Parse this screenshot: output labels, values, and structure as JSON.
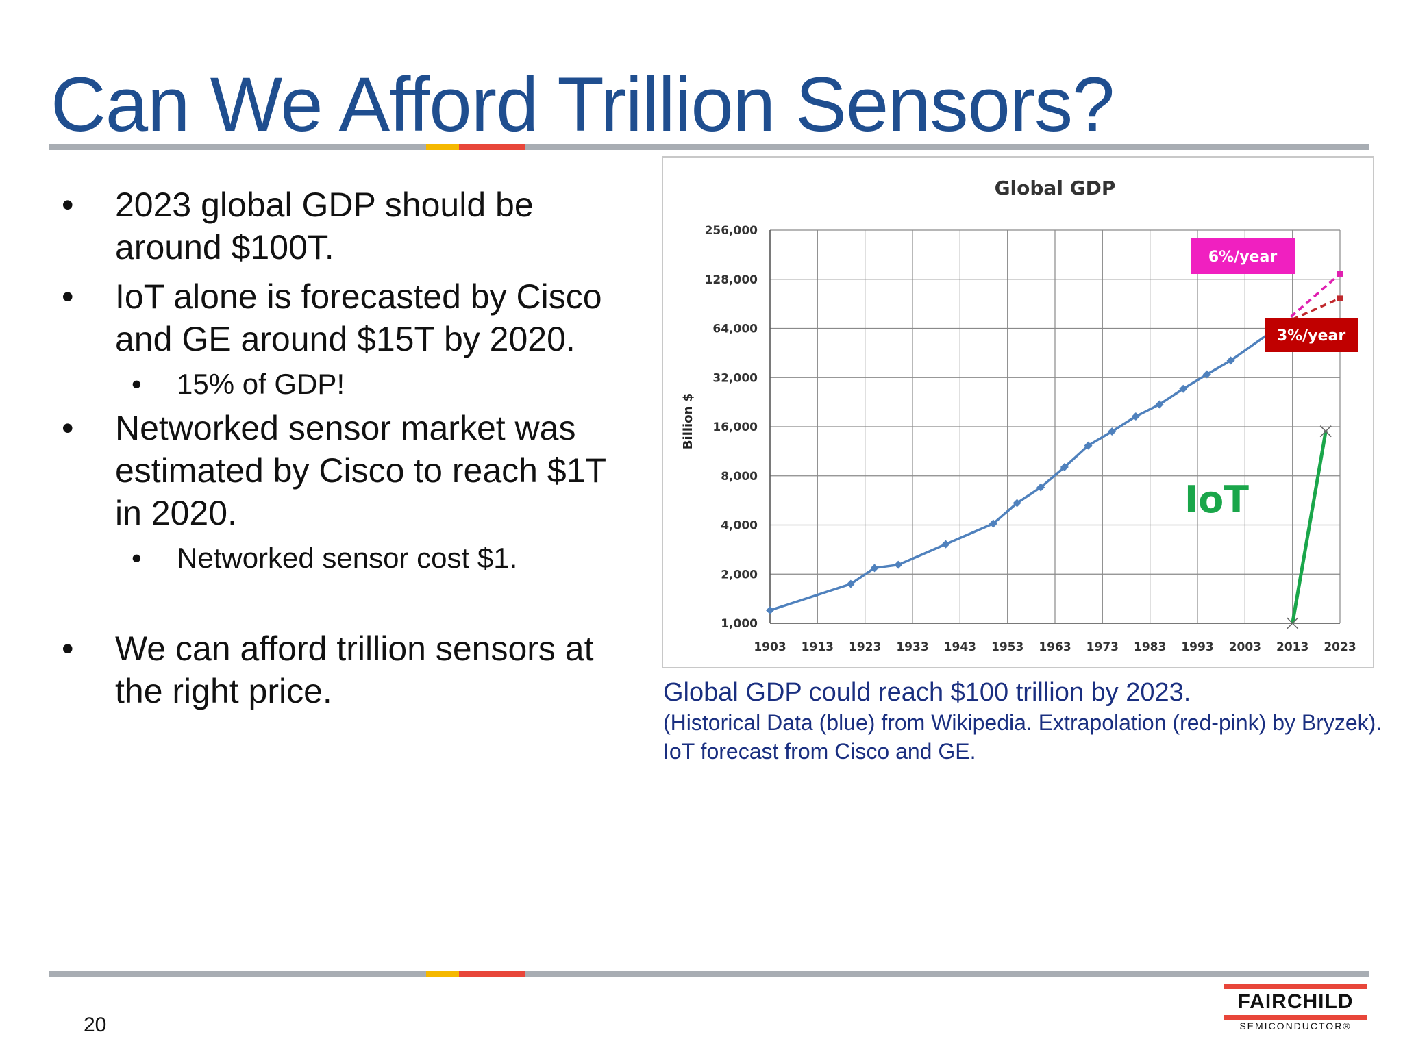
{
  "slide": {
    "title": "Can We Afford Trillion Sensors?",
    "page_number": "20"
  },
  "bullets": [
    {
      "level": 1,
      "text": "2023 global GDP should be around $100T."
    },
    {
      "level": 1,
      "text": "IoT alone is forecasted by Cisco and GE around $15T by 2020."
    },
    {
      "level": 2,
      "text": "15% of GDP!"
    },
    {
      "level": 1,
      "text": "Networked sensor market was estimated by Cisco to reach $1T in 2020."
    },
    {
      "level": 2,
      "text": "Networked sensor cost $1."
    },
    {
      "level": 1,
      "text": "We can afford trillion sensors at the right price."
    }
  ],
  "caption": {
    "main": "Global GDP could reach $100 trillion by 2023.",
    "source": "(Historical Data (blue) from Wikipedia.  Extrapolation (red-pink) by Bryzek).  IoT forecast from Cisco and GE."
  },
  "logo": {
    "name": "FAIRCHILD",
    "subtitle": "SEMICONDUCTOR®"
  },
  "chart_data": {
    "type": "line",
    "title": "Global GDP",
    "xlabel": "",
    "ylabel": "Billion $",
    "y_scale": "log2",
    "xlim": [
      1903,
      2023
    ],
    "ylim": [
      1000,
      256000
    ],
    "x_ticks": [
      1903,
      1913,
      1923,
      1933,
      1943,
      1953,
      1963,
      1973,
      1983,
      1993,
      2003,
      2013,
      2023
    ],
    "y_ticks": [
      1000,
      2000,
      4000,
      8000,
      16000,
      32000,
      64000,
      128000,
      256000
    ],
    "y_tick_labels": [
      "1,000",
      "2,000",
      "4,000",
      "8,000",
      "16,000",
      "32,000",
      "64,000",
      "128,000",
      "256,000"
    ],
    "grid": true,
    "series": [
      {
        "color": "#4f81bd",
        "markers": true,
        "points": [
          [
            1903,
            1200
          ],
          [
            1920,
            1740
          ],
          [
            1925,
            2180
          ],
          [
            1930,
            2280
          ],
          [
            1940,
            3050
          ],
          [
            1950,
            4080
          ],
          [
            1955,
            5450
          ],
          [
            1960,
            6800
          ],
          [
            1965,
            9050
          ],
          [
            1970,
            12250
          ],
          [
            1975,
            14950
          ],
          [
            1980,
            18500
          ],
          [
            1985,
            21900
          ],
          [
            1990,
            27300
          ],
          [
            1995,
            33500
          ],
          [
            2000,
            40700
          ],
          [
            2011,
            68500
          ]
        ]
      },
      {
        "color": "#e020b0",
        "dashed": true,
        "points": [
          [
            2011,
            68500
          ],
          [
            2023,
            138000
          ]
        ]
      },
      {
        "color": "#c0282c",
        "dashed": true,
        "points": [
          [
            2011,
            68500
          ],
          [
            2023,
            98000
          ]
        ]
      },
      {
        "color": "#1aa64a",
        "points": [
          [
            2013,
            1000
          ],
          [
            2020,
            15000
          ]
        ]
      }
    ],
    "annotations": [
      {
        "text": "6%/year",
        "bg": "#f020c0",
        "color": "#ffffff"
      },
      {
        "text": "3%/year",
        "bg": "#c00000",
        "color": "#ffffff"
      },
      {
        "text": "IoT",
        "color": "#1aa64a"
      }
    ]
  }
}
